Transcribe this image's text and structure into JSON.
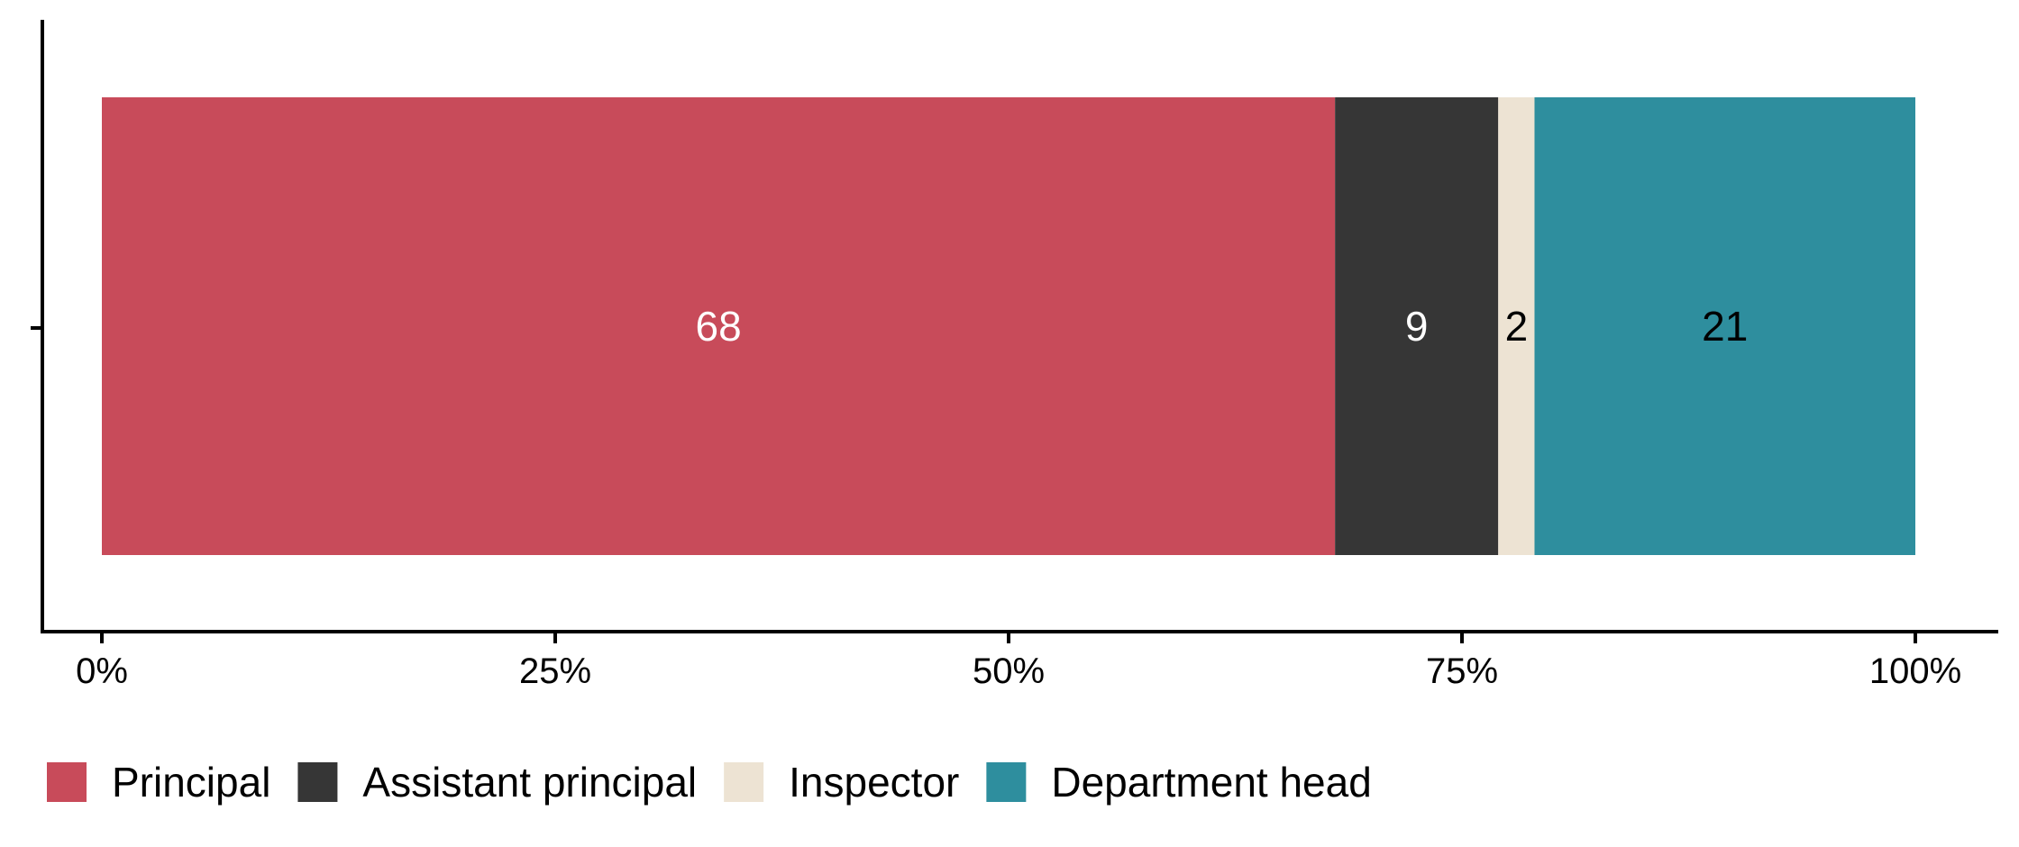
{
  "chart_data": {
    "type": "bar",
    "orientation": "horizontal",
    "stacked": true,
    "categories": [
      ""
    ],
    "series": [
      {
        "name": "Principal",
        "values": [
          68
        ],
        "color": "#C84B5A",
        "label_color": "#FFFFFF"
      },
      {
        "name": "Assistant principal",
        "values": [
          9
        ],
        "color": "#363636",
        "label_color": "#FFFFFF"
      },
      {
        "name": "Inspector",
        "values": [
          2
        ],
        "color": "#EDE3D3",
        "label_color": "#000000"
      },
      {
        "name": "Department head",
        "values": [
          21
        ],
        "color": "#2E8E9E",
        "label_color": "#000000"
      }
    ],
    "x_ticks": [
      "0%",
      "25%",
      "50%",
      "75%",
      "100%"
    ],
    "xlim": [
      0,
      100
    ],
    "title": "",
    "xlabel": "",
    "ylabel": "",
    "grid": false,
    "legend_position": "bottom-left"
  }
}
